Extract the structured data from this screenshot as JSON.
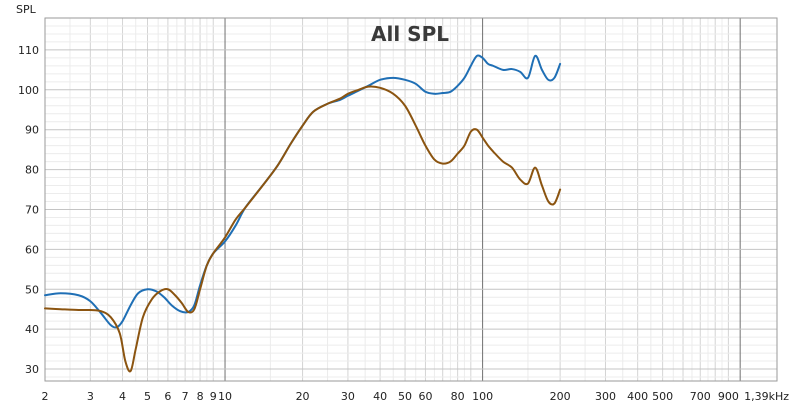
{
  "chart_data": {
    "type": "line",
    "title": "All SPL",
    "ylabel": "SPL",
    "xlabel": "",
    "x_scale": "log",
    "xlim": [
      2,
      1390
    ],
    "ylim": [
      27,
      118
    ],
    "y_ticks": [
      30,
      40,
      50,
      60,
      70,
      80,
      90,
      100,
      110
    ],
    "x_ticks": [
      {
        "v": 2,
        "label": "2"
      },
      {
        "v": 3,
        "label": "3"
      },
      {
        "v": 4,
        "label": "4"
      },
      {
        "v": 5,
        "label": "5"
      },
      {
        "v": 6,
        "label": "6"
      },
      {
        "v": 7,
        "label": "7"
      },
      {
        "v": 8,
        "label": "8"
      },
      {
        "v": 9,
        "label": "9"
      },
      {
        "v": 10,
        "label": "10"
      },
      {
        "v": 20,
        "label": "20"
      },
      {
        "v": 30,
        "label": "30"
      },
      {
        "v": 40,
        "label": "40"
      },
      {
        "v": 50,
        "label": "50"
      },
      {
        "v": 60,
        "label": "60"
      },
      {
        "v": 80,
        "label": "80"
      },
      {
        "v": 100,
        "label": "100"
      },
      {
        "v": 200,
        "label": "200"
      },
      {
        "v": 300,
        "label": "300"
      },
      {
        "v": 400,
        "label": "400"
      },
      {
        "v": 500,
        "label": "500"
      },
      {
        "v": 700,
        "label": "700"
      },
      {
        "v": 900,
        "label": "900"
      },
      {
        "v": 1390,
        "label": "1,39kHz"
      }
    ],
    "grid": true,
    "series": [
      {
        "color": "#1f6fb5",
        "x": [
          2,
          2.3,
          2.7,
          3,
          3.3,
          3.6,
          3.8,
          4,
          4.3,
          4.6,
          5,
          5.4,
          5.8,
          6.2,
          6.7,
          7.2,
          7.6,
          8,
          8.5,
          9,
          10,
          11,
          12,
          14,
          16,
          18,
          20,
          22,
          25,
          28,
          30,
          33,
          36,
          40,
          45,
          50,
          55,
          60,
          65,
          70,
          75,
          80,
          85,
          90,
          95,
          100,
          105,
          110,
          120,
          130,
          140,
          150,
          160,
          170,
          180,
          190,
          200
        ],
        "y": [
          48.5,
          49,
          48.5,
          47,
          44,
          41,
          40.5,
          42,
          46,
          49,
          50,
          49.5,
          48,
          46,
          44.5,
          44.3,
          46,
          51,
          56,
          59,
          62,
          66,
          70.5,
          76,
          81,
          86.5,
          91,
          94.5,
          96.5,
          97.5,
          98.5,
          99.8,
          101,
          102.5,
          103,
          102.5,
          101.5,
          99.5,
          99,
          99.2,
          99.5,
          101,
          103,
          106,
          108.5,
          108,
          106.5,
          106,
          105,
          105.2,
          104.5,
          103,
          108.5,
          105,
          102.5,
          103,
          106.5
        ]
      },
      {
        "color": "#8b5410",
        "x": [
          2,
          2.3,
          2.7,
          3,
          3.3,
          3.6,
          3.9,
          4.1,
          4.3,
          4.5,
          4.8,
          5.2,
          5.6,
          6,
          6.4,
          6.8,
          7.2,
          7.6,
          8,
          8.5,
          9,
          10,
          11,
          12,
          14,
          16,
          18,
          20,
          22,
          25,
          28,
          30,
          33,
          36,
          40,
          45,
          50,
          55,
          60,
          65,
          70,
          75,
          80,
          85,
          90,
          95,
          100,
          105,
          110,
          120,
          130,
          140,
          150,
          160,
          170,
          180,
          190,
          200
        ],
        "y": [
          45.2,
          45,
          44.8,
          44.8,
          44.5,
          43,
          39,
          32,
          29.5,
          35,
          43,
          47.5,
          49.5,
          50,
          48.5,
          46.5,
          44.3,
          45,
          50,
          56,
          59,
          63,
          67.5,
          70.5,
          76,
          81,
          86.5,
          91,
          94.5,
          96.5,
          97.8,
          99,
          100,
          100.8,
          100.5,
          99,
          96,
          91,
          86,
          82.5,
          81.5,
          82,
          84,
          86,
          89.5,
          90,
          88,
          86,
          84.5,
          82,
          80.5,
          77.5,
          76.5,
          80.5,
          76,
          72,
          71.5,
          75
        ]
      }
    ]
  }
}
